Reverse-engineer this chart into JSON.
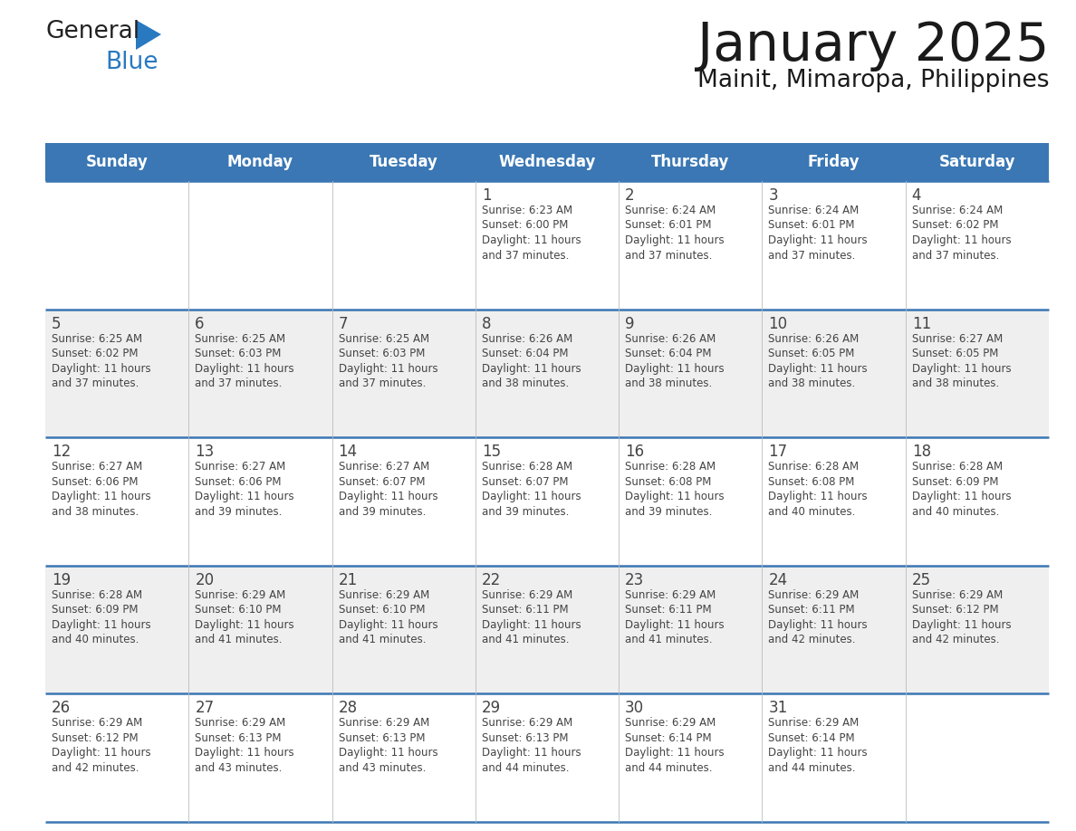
{
  "title": "January 2025",
  "subtitle": "Mainit, Mimaropa, Philippines",
  "days_of_week": [
    "Sunday",
    "Monday",
    "Tuesday",
    "Wednesday",
    "Thursday",
    "Friday",
    "Saturday"
  ],
  "header_bg": "#3A77B4",
  "header_text_color": "#FFFFFF",
  "cell_bg_odd": "#FFFFFF",
  "cell_bg_even": "#EFEFEF",
  "border_color": "#3A77B4",
  "text_color": "#444444",
  "title_color": "#1a1a1a",
  "logo_general_color": "#222222",
  "logo_blue_color": "#2879C0",
  "weeks": [
    [
      {
        "day": null,
        "text": ""
      },
      {
        "day": null,
        "text": ""
      },
      {
        "day": null,
        "text": ""
      },
      {
        "day": 1,
        "sunrise": "6:23 AM",
        "sunset": "6:00 PM",
        "daylight": "11 hours and 37 minutes."
      },
      {
        "day": 2,
        "sunrise": "6:24 AM",
        "sunset": "6:01 PM",
        "daylight": "11 hours and 37 minutes."
      },
      {
        "day": 3,
        "sunrise": "6:24 AM",
        "sunset": "6:01 PM",
        "daylight": "11 hours and 37 minutes."
      },
      {
        "day": 4,
        "sunrise": "6:24 AM",
        "sunset": "6:02 PM",
        "daylight": "11 hours and 37 minutes."
      }
    ],
    [
      {
        "day": 5,
        "sunrise": "6:25 AM",
        "sunset": "6:02 PM",
        "daylight": "11 hours and 37 minutes."
      },
      {
        "day": 6,
        "sunrise": "6:25 AM",
        "sunset": "6:03 PM",
        "daylight": "11 hours and 37 minutes."
      },
      {
        "day": 7,
        "sunrise": "6:25 AM",
        "sunset": "6:03 PM",
        "daylight": "11 hours and 37 minutes."
      },
      {
        "day": 8,
        "sunrise": "6:26 AM",
        "sunset": "6:04 PM",
        "daylight": "11 hours and 38 minutes."
      },
      {
        "day": 9,
        "sunrise": "6:26 AM",
        "sunset": "6:04 PM",
        "daylight": "11 hours and 38 minutes."
      },
      {
        "day": 10,
        "sunrise": "6:26 AM",
        "sunset": "6:05 PM",
        "daylight": "11 hours and 38 minutes."
      },
      {
        "day": 11,
        "sunrise": "6:27 AM",
        "sunset": "6:05 PM",
        "daylight": "11 hours and 38 minutes."
      }
    ],
    [
      {
        "day": 12,
        "sunrise": "6:27 AM",
        "sunset": "6:06 PM",
        "daylight": "11 hours and 38 minutes."
      },
      {
        "day": 13,
        "sunrise": "6:27 AM",
        "sunset": "6:06 PM",
        "daylight": "11 hours and 39 minutes."
      },
      {
        "day": 14,
        "sunrise": "6:27 AM",
        "sunset": "6:07 PM",
        "daylight": "11 hours and 39 minutes."
      },
      {
        "day": 15,
        "sunrise": "6:28 AM",
        "sunset": "6:07 PM",
        "daylight": "11 hours and 39 minutes."
      },
      {
        "day": 16,
        "sunrise": "6:28 AM",
        "sunset": "6:08 PM",
        "daylight": "11 hours and 39 minutes."
      },
      {
        "day": 17,
        "sunrise": "6:28 AM",
        "sunset": "6:08 PM",
        "daylight": "11 hours and 40 minutes."
      },
      {
        "day": 18,
        "sunrise": "6:28 AM",
        "sunset": "6:09 PM",
        "daylight": "11 hours and 40 minutes."
      }
    ],
    [
      {
        "day": 19,
        "sunrise": "6:28 AM",
        "sunset": "6:09 PM",
        "daylight": "11 hours and 40 minutes."
      },
      {
        "day": 20,
        "sunrise": "6:29 AM",
        "sunset": "6:10 PM",
        "daylight": "11 hours and 41 minutes."
      },
      {
        "day": 21,
        "sunrise": "6:29 AM",
        "sunset": "6:10 PM",
        "daylight": "11 hours and 41 minutes."
      },
      {
        "day": 22,
        "sunrise": "6:29 AM",
        "sunset": "6:11 PM",
        "daylight": "11 hours and 41 minutes."
      },
      {
        "day": 23,
        "sunrise": "6:29 AM",
        "sunset": "6:11 PM",
        "daylight": "11 hours and 41 minutes."
      },
      {
        "day": 24,
        "sunrise": "6:29 AM",
        "sunset": "6:11 PM",
        "daylight": "11 hours and 42 minutes."
      },
      {
        "day": 25,
        "sunrise": "6:29 AM",
        "sunset": "6:12 PM",
        "daylight": "11 hours and 42 minutes."
      }
    ],
    [
      {
        "day": 26,
        "sunrise": "6:29 AM",
        "sunset": "6:12 PM",
        "daylight": "11 hours and 42 minutes."
      },
      {
        "day": 27,
        "sunrise": "6:29 AM",
        "sunset": "6:13 PM",
        "daylight": "11 hours and 43 minutes."
      },
      {
        "day": 28,
        "sunrise": "6:29 AM",
        "sunset": "6:13 PM",
        "daylight": "11 hours and 43 minutes."
      },
      {
        "day": 29,
        "sunrise": "6:29 AM",
        "sunset": "6:13 PM",
        "daylight": "11 hours and 44 minutes."
      },
      {
        "day": 30,
        "sunrise": "6:29 AM",
        "sunset": "6:14 PM",
        "daylight": "11 hours and 44 minutes."
      },
      {
        "day": 31,
        "sunrise": "6:29 AM",
        "sunset": "6:14 PM",
        "daylight": "11 hours and 44 minutes."
      },
      {
        "day": null,
        "text": ""
      }
    ]
  ]
}
